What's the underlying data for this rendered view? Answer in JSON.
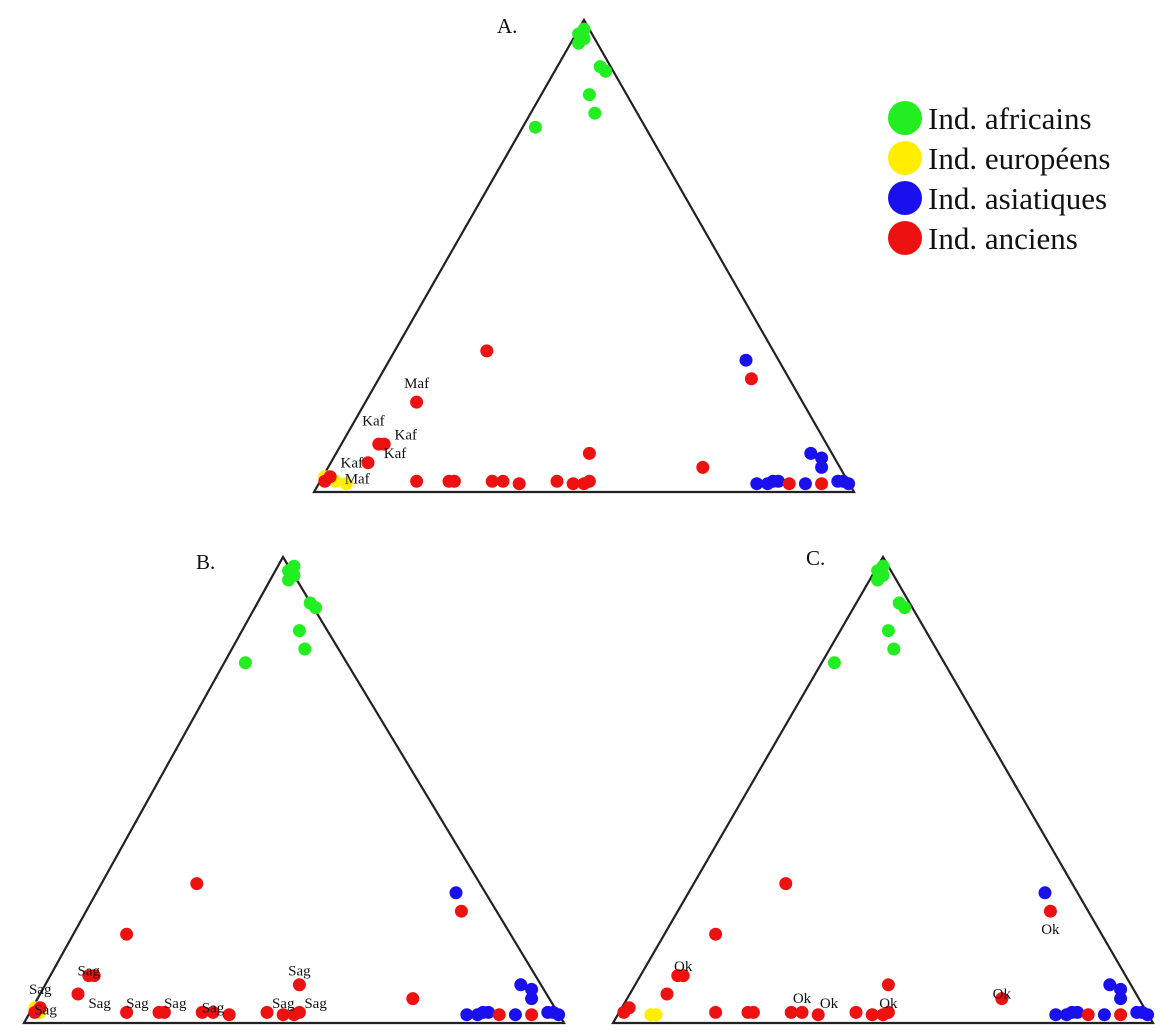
{
  "legend": [
    {
      "label": "Ind. africains",
      "color": "#22ee22"
    },
    {
      "label": "Ind. européens",
      "color": "#ffee00"
    },
    {
      "label": "Ind. asiatiques",
      "color": "#1a10ee"
    },
    {
      "label": "Ind. anciens",
      "color": "#ee1111"
    }
  ],
  "chart_data": [
    {
      "type": "scatter",
      "panel": "A.",
      "title": "A.",
      "projection": "ternary",
      "points": [
        {
          "group": "Ind. africains",
          "x": 0.49,
          "y": 0.97
        },
        {
          "group": "Ind. africains",
          "x": 0.5,
          "y": 0.96
        },
        {
          "group": "Ind. africains",
          "x": 0.49,
          "y": 0.95
        },
        {
          "group": "Ind. africains",
          "x": 0.5,
          "y": 0.98
        },
        {
          "group": "Ind. africains",
          "x": 0.54,
          "y": 0.89
        },
        {
          "group": "Ind. africains",
          "x": 0.53,
          "y": 0.9
        },
        {
          "group": "Ind. africains",
          "x": 0.51,
          "y": 0.84
        },
        {
          "group": "Ind. africains",
          "x": 0.52,
          "y": 0.8
        },
        {
          "group": "Ind. africains",
          "x": 0.41,
          "y": 0.77
        },
        {
          "group": "Ind. européens",
          "x": 0.02,
          "y": 0.02
        },
        {
          "group": "Ind. européens",
          "x": 0.04,
          "y": 0.01
        },
        {
          "group": "Ind. européens",
          "x": 0.06,
          "y": 0.005
        },
        {
          "group": "Ind. asiatiques",
          "x": 0.8,
          "y": 0.27
        },
        {
          "group": "Ind. asiatiques",
          "x": 0.92,
          "y": 0.07
        },
        {
          "group": "Ind. asiatiques",
          "x": 0.94,
          "y": 0.06
        },
        {
          "group": "Ind. asiatiques",
          "x": 0.94,
          "y": 0.04
        },
        {
          "group": "Ind. asiatiques",
          "x": 0.98,
          "y": 0.01
        },
        {
          "group": "Ind. asiatiques",
          "x": 0.99,
          "y": 0.005
        },
        {
          "group": "Ind. asiatiques",
          "x": 0.97,
          "y": 0.01
        },
        {
          "group": "Ind. asiatiques",
          "x": 0.82,
          "y": 0.005
        },
        {
          "group": "Ind. asiatiques",
          "x": 0.84,
          "y": 0.005
        },
        {
          "group": "Ind. asiatiques",
          "x": 0.85,
          "y": 0.01
        },
        {
          "group": "Ind. asiatiques",
          "x": 0.86,
          "y": 0.01
        },
        {
          "group": "Ind. asiatiques",
          "x": 0.91,
          "y": 0.005
        },
        {
          "group": "Ind. anciens",
          "x": 0.32,
          "y": 0.29
        },
        {
          "group": "Ind. anciens",
          "x": 0.81,
          "y": 0.23
        },
        {
          "group": "Ind. anciens",
          "x": 0.19,
          "y": 0.18
        },
        {
          "group": "Ind. anciens",
          "x": 0.12,
          "y": 0.09
        },
        {
          "group": "Ind. anciens",
          "x": 0.13,
          "y": 0.09
        },
        {
          "group": "Ind. anciens",
          "x": 0.1,
          "y": 0.05
        },
        {
          "group": "Ind. anciens",
          "x": 0.03,
          "y": 0.02
        },
        {
          "group": "Ind. anciens",
          "x": 0.02,
          "y": 0.01
        },
        {
          "group": "Ind. anciens",
          "x": 0.19,
          "y": 0.01
        },
        {
          "group": "Ind. anciens",
          "x": 0.25,
          "y": 0.01
        },
        {
          "group": "Ind. anciens",
          "x": 0.26,
          "y": 0.01
        },
        {
          "group": "Ind. anciens",
          "x": 0.33,
          "y": 0.01
        },
        {
          "group": "Ind. anciens",
          "x": 0.35,
          "y": 0.01
        },
        {
          "group": "Ind. anciens",
          "x": 0.38,
          "y": 0.005
        },
        {
          "group": "Ind. anciens",
          "x": 0.45,
          "y": 0.01
        },
        {
          "group": "Ind. anciens",
          "x": 0.48,
          "y": 0.005
        },
        {
          "group": "Ind. anciens",
          "x": 0.5,
          "y": 0.005
        },
        {
          "group": "Ind. anciens",
          "x": 0.51,
          "y": 0.01
        },
        {
          "group": "Ind. anciens",
          "x": 0.51,
          "y": 0.07
        },
        {
          "group": "Ind. anciens",
          "x": 0.72,
          "y": 0.04
        },
        {
          "group": "Ind. anciens",
          "x": 0.88,
          "y": 0.005
        },
        {
          "group": "Ind. anciens",
          "x": 0.94,
          "y": 0.005
        }
      ],
      "annotations": [
        {
          "text": "Maf",
          "x": 0.19,
          "y": 0.21
        },
        {
          "text": "Kaf",
          "x": 0.11,
          "y": 0.13
        },
        {
          "text": "Kaf",
          "x": 0.17,
          "y": 0.1
        },
        {
          "text": "Kaf",
          "x": 0.15,
          "y": 0.06
        },
        {
          "text": "Kaf",
          "x": 0.07,
          "y": 0.04
        },
        {
          "text": "Maf",
          "x": 0.08,
          "y": 0.005
        }
      ]
    },
    {
      "type": "scatter",
      "panel": "B.",
      "title": "B.",
      "projection": "ternary",
      "points": [
        {
          "group": "Ind. africains",
          "x": 0.49,
          "y": 0.97
        },
        {
          "group": "Ind. africains",
          "x": 0.5,
          "y": 0.96
        },
        {
          "group": "Ind. africains",
          "x": 0.49,
          "y": 0.95
        },
        {
          "group": "Ind. africains",
          "x": 0.5,
          "y": 0.98
        },
        {
          "group": "Ind. africains",
          "x": 0.54,
          "y": 0.89
        },
        {
          "group": "Ind. africains",
          "x": 0.53,
          "y": 0.9
        },
        {
          "group": "Ind. africains",
          "x": 0.51,
          "y": 0.84
        },
        {
          "group": "Ind. africains",
          "x": 0.52,
          "y": 0.8
        },
        {
          "group": "Ind. africains",
          "x": 0.41,
          "y": 0.77
        },
        {
          "group": "Ind. européens",
          "x": 0.02,
          "y": 0.02
        },
        {
          "group": "Ind. européens",
          "x": 0.03,
          "y": 0.01
        },
        {
          "group": "Ind. asiatiques",
          "x": 0.8,
          "y": 0.27
        },
        {
          "group": "Ind. asiatiques",
          "x": 0.92,
          "y": 0.07
        },
        {
          "group": "Ind. asiatiques",
          "x": 0.94,
          "y": 0.06
        },
        {
          "group": "Ind. asiatiques",
          "x": 0.94,
          "y": 0.04
        },
        {
          "group": "Ind. asiatiques",
          "x": 0.98,
          "y": 0.01
        },
        {
          "group": "Ind. asiatiques",
          "x": 0.99,
          "y": 0.005
        },
        {
          "group": "Ind. asiatiques",
          "x": 0.97,
          "y": 0.01
        },
        {
          "group": "Ind. asiatiques",
          "x": 0.82,
          "y": 0.005
        },
        {
          "group": "Ind. asiatiques",
          "x": 0.84,
          "y": 0.005
        },
        {
          "group": "Ind. asiatiques",
          "x": 0.85,
          "y": 0.01
        },
        {
          "group": "Ind. asiatiques",
          "x": 0.86,
          "y": 0.01
        },
        {
          "group": "Ind. asiatiques",
          "x": 0.91,
          "y": 0.005
        },
        {
          "group": "Ind. anciens",
          "x": 0.32,
          "y": 0.29
        },
        {
          "group": "Ind. anciens",
          "x": 0.81,
          "y": 0.23
        },
        {
          "group": "Ind. anciens",
          "x": 0.19,
          "y": 0.18
        },
        {
          "group": "Ind. anciens",
          "x": 0.12,
          "y": 0.09
        },
        {
          "group": "Ind. anciens",
          "x": 0.13,
          "y": 0.09
        },
        {
          "group": "Ind. anciens",
          "x": 0.1,
          "y": 0.05
        },
        {
          "group": "Ind. anciens",
          "x": 0.03,
          "y": 0.02
        },
        {
          "group": "Ind. anciens",
          "x": 0.02,
          "y": 0.01
        },
        {
          "group": "Ind. anciens",
          "x": 0.19,
          "y": 0.01
        },
        {
          "group": "Ind. anciens",
          "x": 0.25,
          "y": 0.01
        },
        {
          "group": "Ind. anciens",
          "x": 0.26,
          "y": 0.01
        },
        {
          "group": "Ind. anciens",
          "x": 0.33,
          "y": 0.01
        },
        {
          "group": "Ind. anciens",
          "x": 0.35,
          "y": 0.01
        },
        {
          "group": "Ind. anciens",
          "x": 0.38,
          "y": 0.005
        },
        {
          "group": "Ind. anciens",
          "x": 0.45,
          "y": 0.01
        },
        {
          "group": "Ind. anciens",
          "x": 0.48,
          "y": 0.005
        },
        {
          "group": "Ind. anciens",
          "x": 0.5,
          "y": 0.005
        },
        {
          "group": "Ind. anciens",
          "x": 0.51,
          "y": 0.01
        },
        {
          "group": "Ind. anciens",
          "x": 0.51,
          "y": 0.07
        },
        {
          "group": "Ind. anciens",
          "x": 0.72,
          "y": 0.04
        },
        {
          "group": "Ind. anciens",
          "x": 0.88,
          "y": 0.005
        },
        {
          "group": "Ind. anciens",
          "x": 0.94,
          "y": 0.005
        }
      ],
      "annotations": [
        {
          "text": "Sag",
          "x": 0.12,
          "y": 0.09
        },
        {
          "text": "Sag",
          "x": 0.03,
          "y": 0.05
        },
        {
          "text": "Sag",
          "x": 0.14,
          "y": 0.02
        },
        {
          "text": "Sag",
          "x": 0.21,
          "y": 0.02
        },
        {
          "text": "Sag",
          "x": 0.28,
          "y": 0.02
        },
        {
          "text": "Sag",
          "x": 0.35,
          "y": 0.01
        },
        {
          "text": "Sag",
          "x": 0.48,
          "y": 0.02
        },
        {
          "text": "Sag",
          "x": 0.54,
          "y": 0.02
        },
        {
          "text": "Sag",
          "x": 0.51,
          "y": 0.09
        },
        {
          "text": "Sag",
          "x": 0.04,
          "y": 0.005
        }
      ]
    },
    {
      "type": "scatter",
      "panel": "C.",
      "title": "C.",
      "projection": "ternary",
      "points": [
        {
          "group": "Ind. africains",
          "x": 0.49,
          "y": 0.97
        },
        {
          "group": "Ind. africains",
          "x": 0.5,
          "y": 0.96
        },
        {
          "group": "Ind. africains",
          "x": 0.49,
          "y": 0.95
        },
        {
          "group": "Ind. africains",
          "x": 0.5,
          "y": 0.98
        },
        {
          "group": "Ind. africains",
          "x": 0.54,
          "y": 0.89
        },
        {
          "group": "Ind. africains",
          "x": 0.53,
          "y": 0.9
        },
        {
          "group": "Ind. africains",
          "x": 0.51,
          "y": 0.84
        },
        {
          "group": "Ind. africains",
          "x": 0.52,
          "y": 0.8
        },
        {
          "group": "Ind. africains",
          "x": 0.41,
          "y": 0.77
        },
        {
          "group": "Ind. européens",
          "x": 0.07,
          "y": 0.005
        },
        {
          "group": "Ind. européens",
          "x": 0.08,
          "y": 0.005
        },
        {
          "group": "Ind. asiatiques",
          "x": 0.8,
          "y": 0.27
        },
        {
          "group": "Ind. asiatiques",
          "x": 0.92,
          "y": 0.07
        },
        {
          "group": "Ind. asiatiques",
          "x": 0.94,
          "y": 0.06
        },
        {
          "group": "Ind. asiatiques",
          "x": 0.94,
          "y": 0.04
        },
        {
          "group": "Ind. asiatiques",
          "x": 0.98,
          "y": 0.01
        },
        {
          "group": "Ind. asiatiques",
          "x": 0.99,
          "y": 0.005
        },
        {
          "group": "Ind. asiatiques",
          "x": 0.97,
          "y": 0.01
        },
        {
          "group": "Ind. asiatiques",
          "x": 0.82,
          "y": 0.005
        },
        {
          "group": "Ind. asiatiques",
          "x": 0.84,
          "y": 0.005
        },
        {
          "group": "Ind. asiatiques",
          "x": 0.85,
          "y": 0.01
        },
        {
          "group": "Ind. asiatiques",
          "x": 0.86,
          "y": 0.01
        },
        {
          "group": "Ind. asiatiques",
          "x": 0.91,
          "y": 0.005
        },
        {
          "group": "Ind. anciens",
          "x": 0.32,
          "y": 0.29
        },
        {
          "group": "Ind. anciens",
          "x": 0.81,
          "y": 0.23
        },
        {
          "group": "Ind. anciens",
          "x": 0.19,
          "y": 0.18
        },
        {
          "group": "Ind. anciens",
          "x": 0.12,
          "y": 0.09
        },
        {
          "group": "Ind. anciens",
          "x": 0.13,
          "y": 0.09
        },
        {
          "group": "Ind. anciens",
          "x": 0.1,
          "y": 0.05
        },
        {
          "group": "Ind. anciens",
          "x": 0.03,
          "y": 0.02
        },
        {
          "group": "Ind. anciens",
          "x": 0.02,
          "y": 0.01
        },
        {
          "group": "Ind. anciens",
          "x": 0.19,
          "y": 0.01
        },
        {
          "group": "Ind. anciens",
          "x": 0.25,
          "y": 0.01
        },
        {
          "group": "Ind. anciens",
          "x": 0.26,
          "y": 0.01
        },
        {
          "group": "Ind. anciens",
          "x": 0.33,
          "y": 0.01
        },
        {
          "group": "Ind. anciens",
          "x": 0.35,
          "y": 0.01
        },
        {
          "group": "Ind. anciens",
          "x": 0.38,
          "y": 0.005
        },
        {
          "group": "Ind. anciens",
          "x": 0.45,
          "y": 0.01
        },
        {
          "group": "Ind. anciens",
          "x": 0.48,
          "y": 0.005
        },
        {
          "group": "Ind. anciens",
          "x": 0.5,
          "y": 0.005
        },
        {
          "group": "Ind. anciens",
          "x": 0.51,
          "y": 0.01
        },
        {
          "group": "Ind. anciens",
          "x": 0.51,
          "y": 0.07
        },
        {
          "group": "Ind. anciens",
          "x": 0.72,
          "y": 0.04
        },
        {
          "group": "Ind. anciens",
          "x": 0.88,
          "y": 0.005
        },
        {
          "group": "Ind. anciens",
          "x": 0.94,
          "y": 0.005
        }
      ],
      "annotations": [
        {
          "text": "Ok",
          "x": 0.13,
          "y": 0.1
        },
        {
          "text": "Ok",
          "x": 0.35,
          "y": 0.03
        },
        {
          "text": "Ok",
          "x": 0.4,
          "y": 0.02
        },
        {
          "text": "Ok",
          "x": 0.51,
          "y": 0.02
        },
        {
          "text": "Ok",
          "x": 0.72,
          "y": 0.04
        },
        {
          "text": "Ok",
          "x": 0.81,
          "y": 0.18
        }
      ]
    }
  ]
}
